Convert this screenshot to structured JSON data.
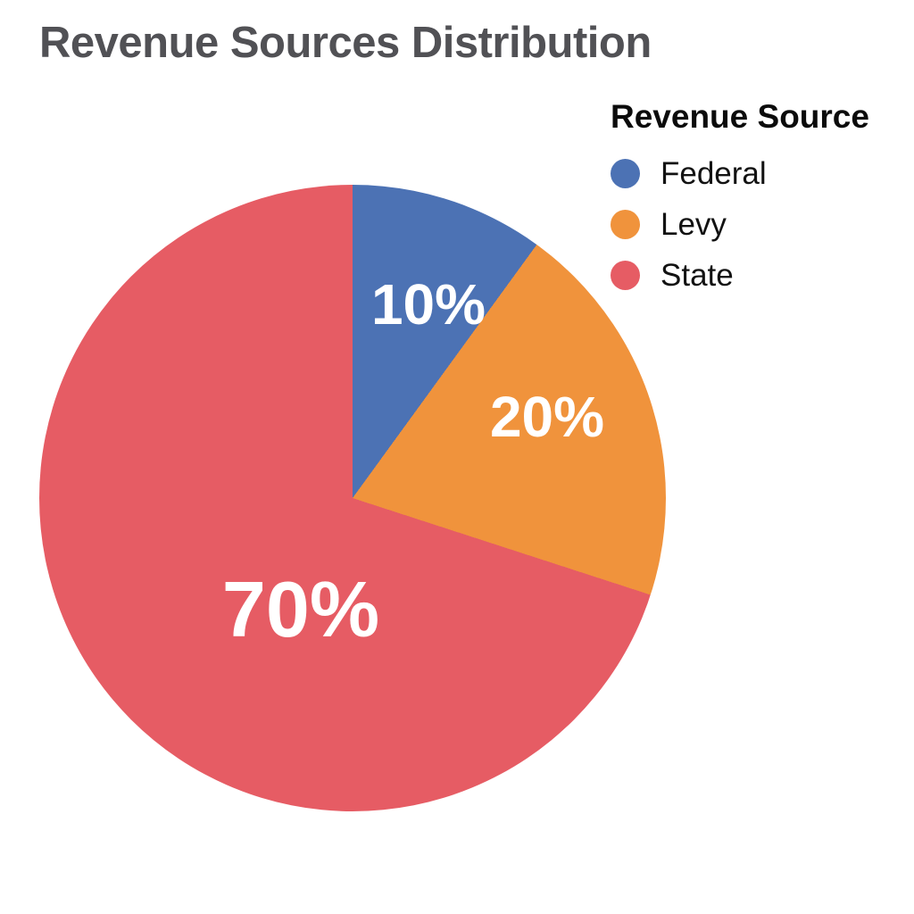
{
  "title": "Revenue Sources Distribution",
  "legend": {
    "title": "Revenue Source"
  },
  "chart_data": {
    "type": "pie",
    "title": "Revenue Sources Distribution",
    "legend_title": "Revenue Source",
    "legend_position": "top-right",
    "start_angle_deg": 0,
    "direction": "clockwise",
    "categories": [
      "Federal",
      "Levy",
      "State"
    ],
    "values": [
      10,
      20,
      70
    ],
    "unit": "%",
    "slices": [
      {
        "label": "Federal",
        "value": 10,
        "percent_label": "10%",
        "color": "#4C72B4"
      },
      {
        "label": "Levy",
        "value": 20,
        "percent_label": "20%",
        "color": "#F0933C"
      },
      {
        "label": "State",
        "value": 70,
        "percent_label": "70%",
        "color": "#E65C64"
      }
    ]
  },
  "colors": {
    "background": "#FFFFFF",
    "title_text": "#515155",
    "legend_text": "#121212",
    "slice_label_text": "#FFFFFF"
  }
}
